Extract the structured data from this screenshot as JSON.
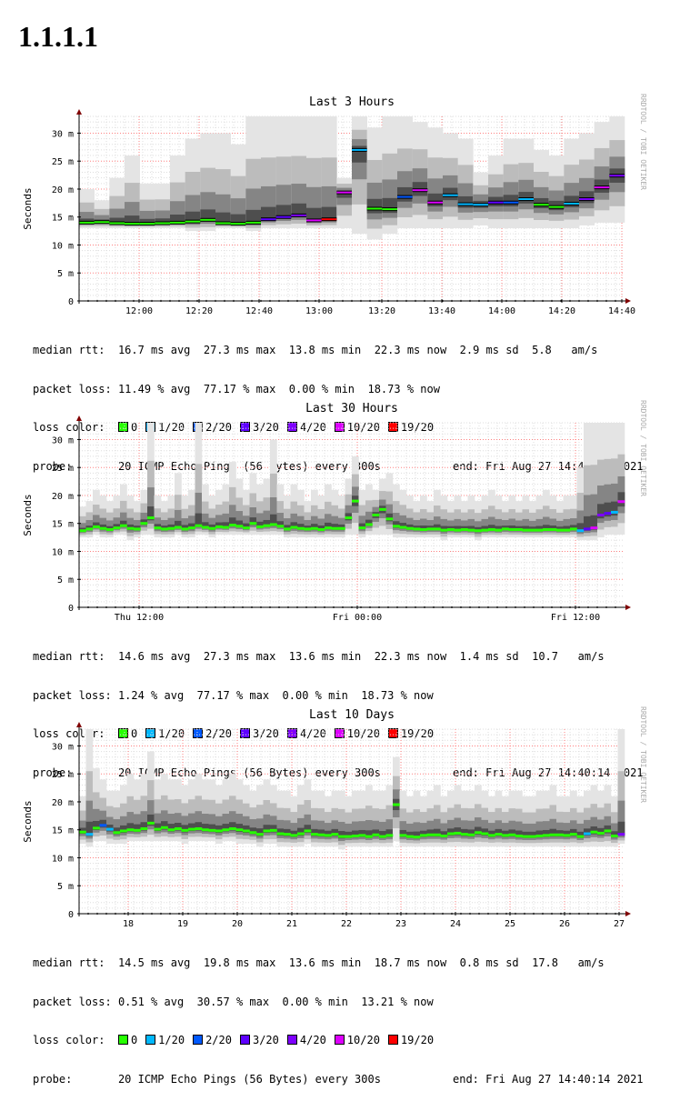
{
  "page_title": "1.1.1.1",
  "chart_data": [
    {
      "type": "line",
      "title": "Last 3 Hours",
      "ylabel": "Seconds",
      "ylim": [
        0,
        33
      ],
      "yticks": [
        0,
        5,
        10,
        15,
        20,
        25,
        30
      ],
      "ytick_labels": [
        "0",
        "5 m",
        "10 m",
        "15 m",
        "20 m",
        "25 m",
        "30 m"
      ],
      "xticks": [
        {
          "pos": 0.11,
          "label": "12:00"
        },
        {
          "pos": 0.22,
          "label": "12:20"
        },
        {
          "pos": 0.33,
          "label": "12:40"
        },
        {
          "pos": 0.44,
          "label": "13:00"
        },
        {
          "pos": 0.555,
          "label": "13:20"
        },
        {
          "pos": 0.665,
          "label": "13:40"
        },
        {
          "pos": 0.775,
          "label": "14:00"
        },
        {
          "pos": 0.885,
          "label": "14:20"
        },
        {
          "pos": 0.995,
          "label": "14:40"
        }
      ],
      "steps": true,
      "series": [
        {
          "values": [
            14.0,
            14.1,
            13.9,
            13.8,
            13.8,
            13.9,
            14.0,
            14.2,
            14.5,
            13.9,
            13.8,
            14.0,
            14.6,
            15.0,
            15.3,
            14.4,
            14.6,
            19.4,
            27.0,
            16.5,
            16.4,
            18.6,
            19.8,
            17.6,
            18.9,
            17.3,
            17.2,
            17.6,
            17.6,
            18.2,
            17.2,
            16.8,
            17.4,
            18.2,
            20.3,
            22.4
          ],
          "loss": [
            1,
            1,
            1,
            1,
            1,
            1,
            1,
            1,
            1,
            1,
            1,
            1,
            4,
            4,
            5,
            6,
            7,
            6,
            2,
            1,
            1,
            3,
            6,
            6,
            2,
            2,
            2,
            4,
            3,
            2,
            1,
            1,
            2,
            5,
            6,
            5
          ],
          "smoke_hi": [
            20,
            18,
            22,
            26,
            21,
            21,
            26,
            29,
            30,
            30,
            28,
            33,
            33,
            33,
            33,
            33,
            33,
            22,
            33,
            31,
            33,
            33,
            32,
            31,
            30,
            29,
            23,
            26,
            29,
            29,
            27,
            26,
            29,
            30,
            32,
            33
          ],
          "smoke_lo": [
            13,
            13,
            13,
            13,
            13,
            13,
            13,
            12.5,
            12.5,
            13,
            13,
            12.5,
            13,
            13,
            13,
            13,
            13,
            13,
            12,
            11,
            12,
            13,
            13,
            13,
            13,
            13,
            13.5,
            13,
            13,
            13,
            13,
            13,
            13,
            13.5,
            14,
            14
          ]
        }
      ],
      "median_rtt": "16.7 ms avg  27.3 ms max  13.8 ms min  22.3 ms now  2.9 ms sd  5.8   am/s",
      "packet_loss": "11.49 % avg  77.17 % max  0.00 % min  18.73 % now"
    },
    {
      "type": "line",
      "title": "Last 30 Hours",
      "ylabel": "Seconds",
      "ylim": [
        0,
        33
      ],
      "yticks": [
        0,
        5,
        10,
        15,
        20,
        25,
        30
      ],
      "ytick_labels": [
        "0",
        "5 m",
        "10 m",
        "15 m",
        "20 m",
        "25 m",
        "30 m"
      ],
      "xticks": [
        {
          "pos": 0.11,
          "label": "Thu 12:00"
        },
        {
          "pos": 0.51,
          "label": "Fri 00:00"
        },
        {
          "pos": 0.91,
          "label": "Fri 12:00"
        }
      ],
      "steps": false,
      "series": [
        {
          "values": [
            13.7,
            14.0,
            14.4,
            14.1,
            13.9,
            14.2,
            14.6,
            14.1,
            14.0,
            15.0,
            16.0,
            14.2,
            14.0,
            14.1,
            14.3,
            14.0,
            14.2,
            14.6,
            14.3,
            14.1,
            14.4,
            14.3,
            14.7,
            14.5,
            14.2,
            15.0,
            14.4,
            14.6,
            14.8,
            14.5,
            14.0,
            14.3,
            14.1,
            14.0,
            14.1,
            13.9,
            14.2,
            14.1,
            14.1,
            16.0,
            19.0,
            14.2,
            14.8,
            16.5,
            17.5,
            15.8,
            14.5,
            14.3,
            14.1,
            14.0,
            13.9,
            14.0,
            14.0,
            13.8,
            13.9,
            13.8,
            13.9,
            13.8,
            13.7,
            13.8,
            13.9,
            13.8,
            14.0,
            13.9,
            13.9,
            13.8,
            13.8,
            13.8,
            13.9,
            13.9,
            13.8,
            13.8,
            14.0,
            13.7,
            14.0,
            14.2,
            16.5,
            16.8,
            17.0,
            18.9
          ],
          "loss": [
            1,
            1,
            1,
            1,
            1,
            1,
            1,
            1,
            1,
            1,
            1,
            1,
            1,
            1,
            1,
            1,
            1,
            1,
            1,
            1,
            1,
            1,
            1,
            1,
            1,
            1,
            1,
            1,
            1,
            1,
            1,
            1,
            1,
            1,
            1,
            1,
            1,
            1,
            1,
            1,
            1,
            1,
            1,
            1,
            1,
            1,
            1,
            1,
            1,
            1,
            1,
            1,
            1,
            1,
            1,
            1,
            1,
            1,
            1,
            1,
            1,
            1,
            1,
            1,
            1,
            1,
            1,
            1,
            1,
            1,
            1,
            1,
            1,
            2,
            4,
            6,
            5,
            4,
            2,
            6
          ],
          "smoke_hi": [
            18,
            19,
            21,
            20,
            19,
            20,
            22,
            20,
            19,
            21,
            33,
            20,
            19,
            20,
            24,
            20,
            21,
            33,
            22,
            20,
            21,
            22,
            26,
            23,
            21,
            24,
            22,
            23,
            30,
            22,
            20,
            22,
            21,
            19,
            21,
            20,
            22,
            21,
            20,
            23,
            27,
            21,
            22,
            21,
            23,
            24,
            22,
            21,
            20,
            19,
            20,
            19,
            21,
            20,
            19,
            20,
            19,
            20,
            19,
            20,
            21,
            20,
            19,
            20,
            19,
            20,
            19,
            20,
            21,
            20,
            19,
            20,
            20,
            25,
            33,
            33,
            33,
            33,
            33,
            33
          ],
          "smoke_lo": [
            12.5,
            12.5,
            13,
            12.5,
            12.5,
            13,
            13,
            12,
            12.5,
            13,
            13,
            12.5,
            12.5,
            12.5,
            13,
            12.5,
            12.5,
            13,
            13,
            12.5,
            13,
            13,
            13,
            13,
            13,
            13,
            13,
            13,
            13,
            13,
            12.5,
            12.5,
            12.5,
            12.5,
            12.5,
            12.5,
            12.5,
            12.5,
            12.5,
            13,
            13,
            12.5,
            13,
            13,
            13,
            13,
            12.5,
            12.5,
            12.5,
            12.5,
            12.5,
            12.5,
            12.5,
            12,
            12.5,
            12.5,
            12.5,
            12.5,
            12,
            12.5,
            12.5,
            12.5,
            12.5,
            12.5,
            12.5,
            12.5,
            12.5,
            12.5,
            12.5,
            12.5,
            12.5,
            12.5,
            12.5,
            12,
            12,
            12,
            12.5,
            13,
            13,
            13
          ]
        }
      ],
      "median_rtt": "14.6 ms avg  27.3 ms max  13.6 ms min  22.3 ms now  1.4 ms sd  10.7   am/s",
      "packet_loss": "1.24 % avg  77.17 % max  0.00 % min  18.73 % now"
    },
    {
      "type": "line",
      "title": "Last 10 Days",
      "ylabel": "Seconds",
      "ylim": [
        0,
        33
      ],
      "yticks": [
        0,
        5,
        10,
        15,
        20,
        25,
        30
      ],
      "ytick_labels": [
        "0",
        "5 m",
        "10 m",
        "15 m",
        "20 m",
        "25 m",
        "30 m"
      ],
      "xticks": [
        {
          "pos": 0.09,
          "label": "18"
        },
        {
          "pos": 0.19,
          "label": "19"
        },
        {
          "pos": 0.29,
          "label": "20"
        },
        {
          "pos": 0.39,
          "label": "21"
        },
        {
          "pos": 0.49,
          "label": "22"
        },
        {
          "pos": 0.59,
          "label": "23"
        },
        {
          "pos": 0.69,
          "label": "24"
        },
        {
          "pos": 0.79,
          "label": "25"
        },
        {
          "pos": 0.89,
          "label": "26"
        },
        {
          "pos": 0.99,
          "label": "27"
        }
      ],
      "steps": false,
      "series": [
        {
          "values": [
            14.6,
            14.2,
            15.3,
            15.8,
            15.1,
            14.5,
            14.8,
            15.0,
            14.9,
            15.2,
            16.2,
            15.1,
            15.4,
            15.0,
            15.2,
            14.9,
            15.1,
            15.2,
            15.0,
            14.9,
            14.8,
            15.0,
            15.2,
            15.0,
            14.8,
            14.5,
            14.2,
            14.8,
            14.9,
            14.3,
            14.2,
            14.0,
            14.3,
            14.8,
            14.2,
            14.1,
            14.0,
            14.2,
            13.8,
            13.8,
            13.9,
            14.0,
            13.8,
            14.1,
            13.8,
            14.0,
            19.5,
            14.0,
            13.8,
            13.7,
            14.0,
            14.1,
            14.1,
            13.9,
            14.3,
            14.4,
            14.2,
            14.1,
            14.5,
            14.3,
            14.0,
            14.2,
            14.0,
            14.1,
            13.9,
            13.8,
            13.8,
            13.9,
            14.0,
            14.1,
            14.1,
            14.0,
            14.2,
            13.8,
            14.3,
            14.6,
            14.4,
            14.8,
            13.9,
            14.2
          ],
          "loss": [
            1,
            2,
            1,
            3,
            2,
            1,
            1,
            1,
            1,
            1,
            1,
            1,
            1,
            1,
            1,
            1,
            1,
            1,
            1,
            1,
            1,
            1,
            1,
            1,
            1,
            1,
            1,
            1,
            1,
            1,
            1,
            1,
            1,
            1,
            1,
            1,
            1,
            1,
            1,
            1,
            1,
            1,
            1,
            1,
            1,
            1,
            1,
            1,
            1,
            1,
            1,
            1,
            1,
            1,
            1,
            1,
            1,
            1,
            1,
            1,
            1,
            1,
            1,
            1,
            1,
            1,
            1,
            1,
            1,
            1,
            1,
            1,
            1,
            1,
            2,
            1,
            1,
            1,
            1,
            5
          ],
          "smoke_hi": [
            21,
            33,
            26,
            24,
            22,
            22,
            23,
            25,
            24,
            25,
            29,
            24,
            25,
            24,
            24,
            23,
            24,
            25,
            24,
            24,
            23,
            24,
            25,
            24,
            23,
            22,
            23,
            24,
            23,
            22,
            22,
            21,
            23,
            24,
            22,
            22,
            21,
            22,
            22,
            21,
            22,
            22,
            23,
            22,
            22,
            23,
            28,
            22,
            21,
            22,
            21,
            22,
            23,
            21,
            22,
            23,
            22,
            22,
            23,
            22,
            21,
            22,
            21,
            22,
            22,
            21,
            21,
            22,
            22,
            23,
            21,
            21,
            22,
            21,
            22,
            23,
            22,
            23,
            21,
            33
          ],
          "smoke_lo": [
            12.5,
            12,
            13,
            13,
            12.5,
            12.5,
            12.5,
            13,
            13,
            13,
            13,
            13,
            13,
            13,
            13,
            12.5,
            13,
            13,
            13,
            13,
            12.5,
            13,
            13,
            12.5,
            12.5,
            12.5,
            12,
            12.5,
            12.5,
            12,
            12,
            12,
            12,
            12.5,
            12,
            12,
            12,
            12,
            11.5,
            12,
            12,
            12,
            12,
            12,
            12,
            12,
            13,
            12,
            12,
            12,
            12,
            12,
            12,
            12,
            12,
            12,
            12,
            12,
            12,
            12,
            12,
            12,
            12,
            12,
            12,
            12,
            12,
            12,
            12,
            12,
            12,
            12,
            12,
            12,
            12,
            12,
            12,
            12,
            12,
            12.5
          ]
        }
      ],
      "median_rtt": "14.5 ms avg  19.8 ms max  13.6 ms min  18.7 ms now  0.8 ms sd  17.8   am/s",
      "packet_loss": "0.51 % avg  30.57 % max  0.00 % min  13.21 % now"
    }
  ],
  "legend": {
    "median_rtt_label": "median rtt:",
    "packet_loss_label": "packet loss:",
    "loss_color_label": "loss color:",
    "probe_label": "probe:",
    "probe_text": "20 ICMP Echo Pings (56 Bytes) every 300s",
    "end_text": "end: Fri Aug 27 14:40:14 2021",
    "loss_colors": [
      {
        "label": "0",
        "color": "#26ff00"
      },
      {
        "label": "1/20",
        "color": "#00b8ff"
      },
      {
        "label": "2/20",
        "color": "#0059ff"
      },
      {
        "label": "3/20",
        "color": "#5e00ff"
      },
      {
        "label": "4/20",
        "color": "#7e00ff"
      },
      {
        "label": "10/20",
        "color": "#dd00ff"
      },
      {
        "label": "19/20",
        "color": "#ff0000"
      }
    ]
  },
  "watermark": "RRDTOOL / TOBI OETIKER",
  "colors": {
    "grid_minor": "#dddddd",
    "grid_major": "#ff8080",
    "axis": "#000000",
    "arrow": "#800000",
    "median_outline": "#000000"
  }
}
